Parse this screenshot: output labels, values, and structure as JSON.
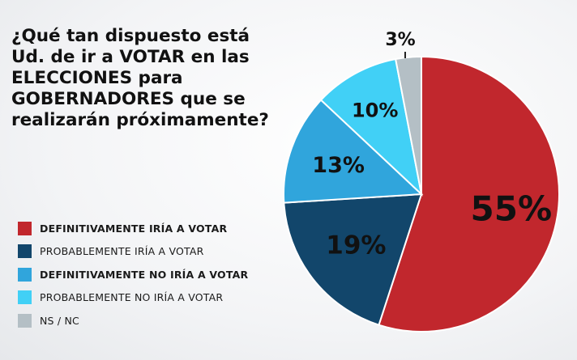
{
  "chart_data": {
    "type": "pie",
    "title_lines": [
      "¿Qué tan dispuesto está",
      "Ud. de ir a VOTAR en las",
      "ELECCIONES para",
      "GOBERNADORES que se",
      "realizarán próximamente?"
    ],
    "slices": [
      {
        "label": "DEFINITIVAMENTE IRÍA A VOTAR",
        "value": 55,
        "value_label": "55%",
        "color": "#c1272d",
        "bold": true
      },
      {
        "label": "PROBABLEMENTE IRÍA A VOTAR",
        "value": 19,
        "value_label": "19%",
        "color": "#12466b",
        "bold": false
      },
      {
        "label": "DEFINITIVAMENTE NO IRÍA A VOTAR",
        "value": 13,
        "value_label": "13%",
        "color": "#30a5dc",
        "bold": true
      },
      {
        "label": "PROBABLEMENTE NO IRÍA A VOTAR",
        "value": 10,
        "value_label": "10%",
        "color": "#41d0f6",
        "bold": false
      },
      {
        "label": "NS / NC",
        "value": 3,
        "value_label": "3%",
        "color": "#b4bfc5",
        "bold": false
      }
    ],
    "legend_position": "bottom-left"
  }
}
